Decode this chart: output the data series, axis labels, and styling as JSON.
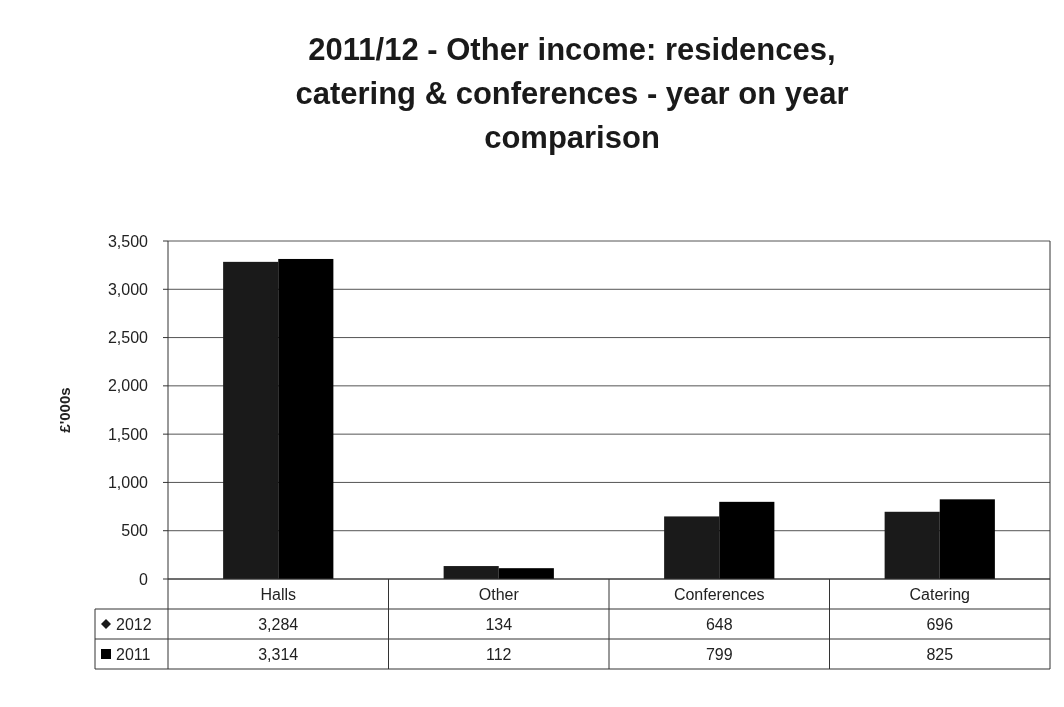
{
  "chart_data": {
    "type": "bar",
    "title": "2011/12 - Other income: residences, catering & conferences - year on year comparison",
    "ylabel": "£'000s",
    "categories": [
      "Halls",
      "Other",
      "Conferences",
      "Catering"
    ],
    "series": [
      {
        "name": "2012",
        "color": "#1a1a1a",
        "values": [
          3284,
          134,
          648,
          696
        ],
        "value_labels": [
          "3,284",
          "134",
          "648",
          "696"
        ]
      },
      {
        "name": "2011",
        "color": "#000000",
        "values": [
          3314,
          112,
          799,
          825
        ],
        "value_labels": [
          "3,314",
          "112",
          "799",
          "825"
        ]
      }
    ],
    "ylim": [
      0,
      3500
    ],
    "yticks": [
      {
        "value": 0,
        "label": "0"
      },
      {
        "value": 500,
        "label": "500"
      },
      {
        "value": 1000,
        "label": "1,000"
      },
      {
        "value": 1500,
        "label": "1,500"
      },
      {
        "value": 2000,
        "label": "2,000"
      },
      {
        "value": 2500,
        "label": "2,500"
      },
      {
        "value": 3000,
        "label": "3,000"
      },
      {
        "value": 3500,
        "label": "3,500"
      }
    ],
    "grid": "y",
    "legend": "bottom"
  }
}
